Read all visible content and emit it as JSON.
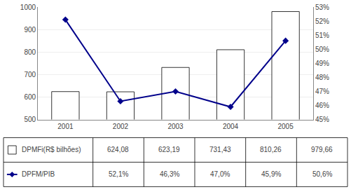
{
  "chart_data": {
    "type": "bar",
    "categories": [
      "2001",
      "2002",
      "2003",
      "2004",
      "2005"
    ],
    "series": [
      {
        "name": "DPMFi(R$ bilhões)",
        "type": "bar",
        "color": "#ffffff",
        "values": [
          624.08,
          623.19,
          731.43,
          810.26,
          979.66
        ],
        "value_labels": [
          "624,08",
          "623,19",
          "731,43",
          "810,26",
          "979,66"
        ]
      },
      {
        "name": "DPFM/PIB",
        "type": "line",
        "color": "#00008B",
        "marker": "diamond",
        "axis": "y2",
        "values": [
          52.1,
          46.3,
          47.0,
          45.9,
          50.6
        ],
        "value_labels": [
          "52,1%",
          "46,3%",
          "47,0%",
          "45,9%",
          "50,6%"
        ]
      }
    ],
    "ylim": [
      500,
      1000
    ],
    "yticks": [
      500,
      600,
      700,
      800,
      900,
      1000
    ],
    "y2lim": [
      45,
      53
    ],
    "y2ticks": [
      {
        "value": 45,
        "label": "45%"
      },
      {
        "value": 46,
        "label": "46%"
      },
      {
        "value": 47,
        "label": "47%"
      },
      {
        "value": 48,
        "label": "48%"
      },
      {
        "value": 49,
        "label": "49%"
      },
      {
        "value": 50,
        "label": "50%"
      },
      {
        "value": 51,
        "label": "51%"
      },
      {
        "value": 52,
        "label": "52%"
      },
      {
        "value": 53,
        "label": "53%"
      }
    ],
    "grid": true,
    "data_labels": true
  }
}
